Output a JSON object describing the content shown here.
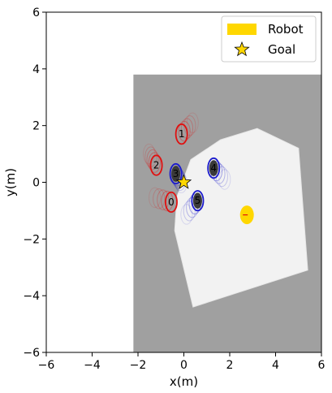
{
  "chart_data": {
    "type": "scatter",
    "xlabel": "x(m)",
    "ylabel": "y(m)",
    "xlim": [
      -6,
      6
    ],
    "ylim": [
      -6,
      6
    ],
    "xticks": [
      -6,
      -4,
      -2,
      0,
      2,
      4,
      6
    ],
    "yticks": [
      -6,
      -4,
      -2,
      0,
      2,
      4,
      6
    ],
    "grid": false,
    "legend_placement": "top-right",
    "legend": [
      {
        "label": "Robot",
        "marker": "filled-ellipse",
        "color": "#ffd700"
      },
      {
        "label": "Goal",
        "marker": "star",
        "color": "#ffd700"
      }
    ],
    "map": {
      "unknown_region": {
        "x_from": -2.2,
        "x_to": 6,
        "y_from": -6,
        "y_to": 3.8,
        "color": "#a0a0a0"
      },
      "free_space_polygon": [
        [
          3.2,
          1.9
        ],
        [
          5.0,
          1.2
        ],
        [
          5.4,
          -3.1
        ],
        [
          0.4,
          -4.4
        ],
        [
          -0.4,
          -1.7
        ],
        [
          -0.3,
          -0.5
        ],
        [
          0.3,
          0.8
        ],
        [
          1.6,
          1.5
        ],
        [
          3.2,
          1.9
        ]
      ],
      "free_color": "#f2f2f2"
    },
    "robot": {
      "x": 2.75,
      "y": -1.15,
      "rx": 0.3,
      "ry": 0.33,
      "color": "#ffd700"
    },
    "goal": {
      "x": 0.0,
      "y": 0.0,
      "color": "#ffd700"
    },
    "agents": [
      {
        "id": "0",
        "x": -0.55,
        "y": -0.7,
        "color": "red",
        "trail_dx": -0.18,
        "trail_dy": 0.04
      },
      {
        "id": "1",
        "x": -0.1,
        "y": 1.7,
        "color": "red",
        "trail_dx": 0.12,
        "trail_dy": 0.1
      },
      {
        "id": "2",
        "x": -1.2,
        "y": 0.6,
        "color": "red",
        "trail_dx": -0.08,
        "trail_dy": 0.1
      },
      {
        "id": "3",
        "x": -0.35,
        "y": 0.3,
        "color": "blue",
        "trail_dx": 0.06,
        "trail_dy": -0.08
      },
      {
        "id": "4",
        "x": 1.3,
        "y": 0.5,
        "color": "blue",
        "trail_dx": 0.12,
        "trail_dy": -0.1
      },
      {
        "id": "5",
        "x": 0.6,
        "y": -0.65,
        "color": "blue",
        "trail_dx": -0.12,
        "trail_dy": -0.12
      }
    ]
  }
}
